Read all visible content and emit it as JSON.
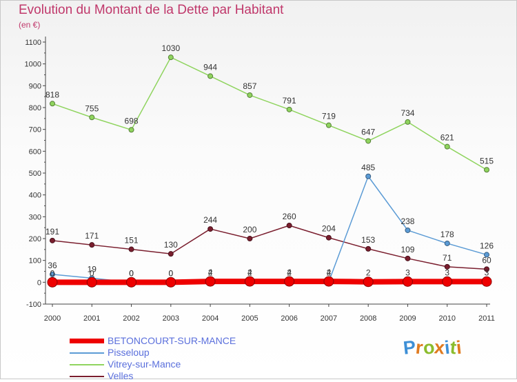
{
  "title": "Evolution du Montant de la Dette par Habitant",
  "subtitle": "(en €)",
  "logo": {
    "letters": [
      "P",
      "r",
      "o",
      "x",
      "i",
      "t",
      "i"
    ],
    "colors": [
      "#3d8fd6",
      "#e07b20",
      "#8cbc2d",
      "#e07b20",
      "#3d8fd6",
      "#8cbc2d",
      "#e07b20"
    ]
  },
  "chart_data": {
    "type": "line",
    "x": [
      2000,
      2001,
      2002,
      2003,
      2004,
      2005,
      2006,
      2007,
      2008,
      2009,
      2010,
      2011
    ],
    "ylim": [
      -100,
      1100
    ],
    "ytick_step": 100,
    "grid": false,
    "legend_position": "bottom-left",
    "series": [
      {
        "name": "Vitrey-sur-Mance",
        "color": "#8fd45e",
        "values": [
          818,
          755,
          698,
          1030,
          944,
          857,
          791,
          719,
          647,
          734,
          621,
          515
        ],
        "labels": [
          "818",
          "755",
          "698",
          "1030",
          "944",
          "857",
          "791",
          "719",
          "647",
          "734",
          "621",
          "515"
        ]
      },
      {
        "name": "Velles",
        "color": "#7a1e2e",
        "values": [
          191,
          171,
          151,
          130,
          244,
          200,
          260,
          204,
          153,
          109,
          71,
          60
        ],
        "labels": [
          "191",
          "171",
          "151",
          "130",
          "244",
          "200",
          "260",
          "204",
          "153",
          "109",
          "71",
          "60"
        ]
      },
      {
        "name": "Pisseloup",
        "color": "#5b9bd5",
        "values": [
          36,
          19,
          0,
          0,
          2,
          2,
          2,
          2,
          485,
          238,
          178,
          126
        ],
        "labels": [
          "36",
          "19",
          "0",
          "0",
          "2",
          "2",
          "2",
          "2",
          "485",
          "238",
          "178",
          "126"
        ]
      },
      {
        "name": "BETONCOURT-SUR-MANCE",
        "color": "#ee0000",
        "values": [
          0,
          0,
          0,
          0,
          4,
          4,
          4,
          4,
          2,
          3,
          3,
          3
        ],
        "labels": [
          "0",
          "0",
          "0",
          "0",
          "4",
          "4",
          "4",
          "4",
          "2",
          "3",
          "3",
          "3"
        ]
      }
    ],
    "legend": [
      "BETONCOURT-SUR-MANCE",
      "Pisseloup",
      "Vitrey-sur-Mance",
      "Velles"
    ]
  }
}
